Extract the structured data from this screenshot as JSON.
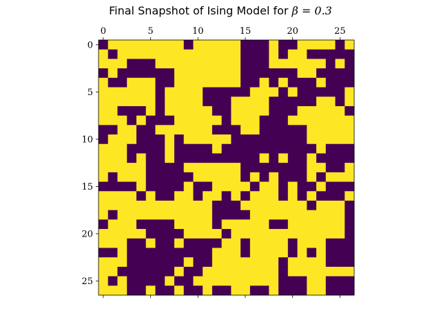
{
  "chart_data": {
    "type": "heatmap",
    "title_text": "Final Snapshot of Ising Model for ",
    "title_math": "β = 0.3",
    "rows": 27,
    "cols": 27,
    "x_ticks": [
      "0",
      "5",
      "10",
      "15",
      "20",
      "25"
    ],
    "y_ticks": [
      "0",
      "5",
      "10",
      "15",
      "20",
      "25"
    ],
    "x_tick_values": [
      0,
      5,
      10,
      15,
      20,
      25
    ],
    "y_tick_values": [
      0,
      5,
      10,
      15,
      20,
      25
    ],
    "xaxis_position": "top",
    "colors": {
      "-1": "#440154",
      "1": "#fde725"
    },
    "grid": [
      "011111111011111000100111101",
      "101111111111111000101100000",
      "111000111111111000111111010",
      "010000001111111000000110000",
      "100111001111111001010001000",
      "111111011110000011101000001",
      "111111011110001111000001101",
      "110001011111001111000111110",
      "111010001111101110001111111",
      "001100111111000110000011111",
      "011100010111110000000011111",
      "111000010000100000000001000",
      "111010010000000001010010000",
      "111110000111111000000011001",
      "101110000011111010100010111",
      "000010000100111101101001000",
      "111101001101101011101010001",
      "111111111111000111111101110",
      "101111111111000011111111110",
      "011100001111011111001111110",
      "111110000111101111111111110",
      "111001001000011011110111000",
      "001000000000111011110101000",
      "111000000100111111101111000",
      "110000001001111111101111111",
      "101000010011111111100011000",
      "111001001001001100100011000"
    ]
  }
}
